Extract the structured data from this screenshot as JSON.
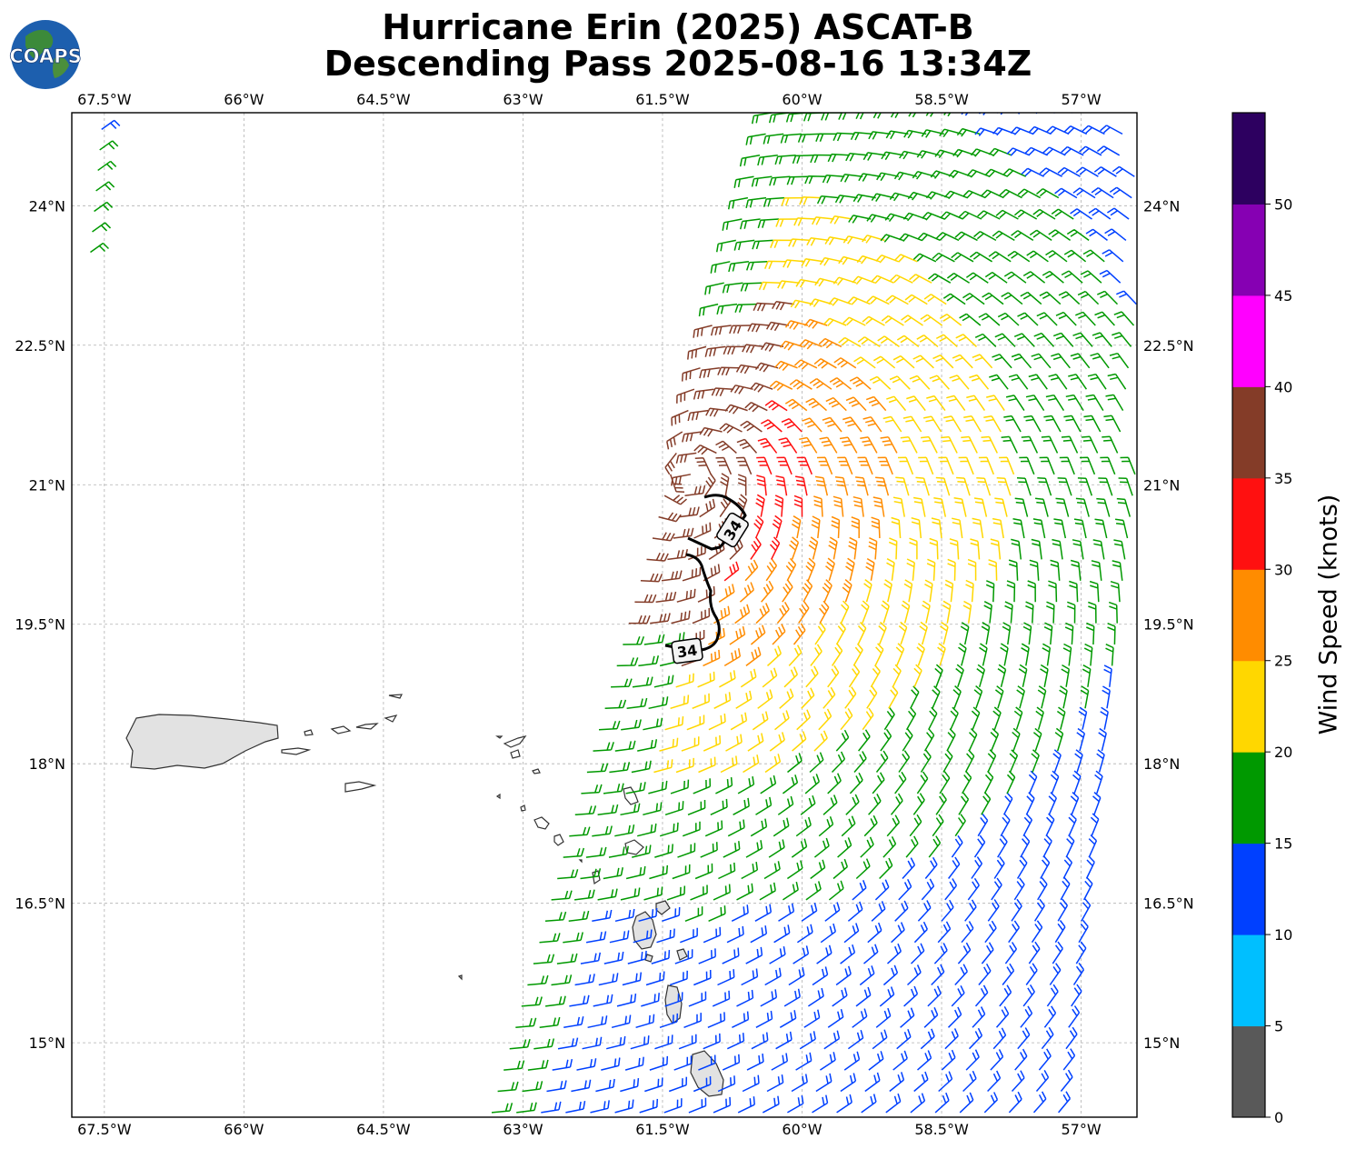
{
  "title": {
    "line1": "Hurricane Erin (2025) ASCAT-B",
    "line2": "Descending Pass 2025-08-16 13:34Z"
  },
  "logo": {
    "text": "COAPS"
  },
  "map": {
    "lon_range": [
      -67.85,
      -56.4
    ],
    "lat_range": [
      14.2,
      25.0
    ],
    "lon_ticks": [
      "67.5°W",
      "66°W",
      "64.5°W",
      "63°W",
      "61.5°W",
      "60°W",
      "58.5°W",
      "57°W"
    ],
    "lon_tick_values": [
      -67.5,
      -66,
      -64.5,
      -63,
      -61.5,
      -60,
      -58.5,
      -57
    ],
    "lat_ticks": [
      "24°N",
      "22.5°N",
      "21°N",
      "19.5°N",
      "18°N",
      "16.5°N",
      "15°N"
    ],
    "lat_tick_values": [
      24,
      22.5,
      21,
      19.5,
      18,
      16.5,
      15
    ],
    "grid": true,
    "contour_label": "34",
    "contour_label_2": "34"
  },
  "colorbar": {
    "label": "Wind Speed (knots)",
    "ticks": [
      "0",
      "5",
      "10",
      "15",
      "20",
      "25",
      "30",
      "35",
      "40",
      "45",
      "50"
    ],
    "colors": [
      "#595959",
      "#00bfff",
      "#0040ff",
      "#009900",
      "#ffd700",
      "#ff8c00",
      "#ff1010",
      "#843c28",
      "#ff00ff",
      "#8600b3",
      "#2d0060"
    ]
  }
}
